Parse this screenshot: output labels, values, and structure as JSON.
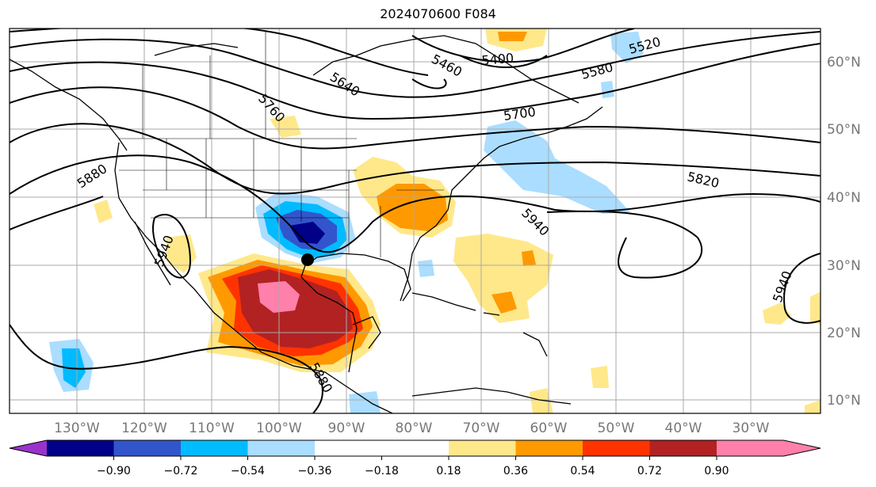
{
  "title": "2024070600 F084",
  "map": {
    "lon_labels": [
      "130°W",
      "120°W",
      "110°W",
      "100°W",
      "90°W",
      "80°W",
      "70°W",
      "60°W",
      "50°W",
      "40°W",
      "30°W"
    ],
    "lat_labels": [
      "60°N",
      "50°N",
      "40°N",
      "30°N",
      "20°N",
      "10°N"
    ],
    "contour_labels": [
      "5460",
      "5400",
      "5520",
      "5580",
      "5640",
      "5700",
      "5760",
      "5820",
      "5880",
      "5940",
      "5940",
      "5940",
      "5880"
    ]
  },
  "colorbar": {
    "ticks": [
      "−0.90",
      "−0.72",
      "−0.54",
      "−0.36",
      "−0.18",
      "0.18",
      "0.36",
      "0.54",
      "0.72",
      "0.90"
    ],
    "colors": [
      "#9933cc",
      "#000088",
      "#3355cc",
      "#00bbff",
      "#aaddff",
      "#ffffff",
      "#ffe88a",
      "#ff9900",
      "#ff3300",
      "#b22222",
      "#ff80aa"
    ]
  },
  "colors": {
    "neg_light": "#aaddff",
    "neg_mid": "#00bbff",
    "neg_deep": "#3355cc",
    "neg_darkest": "#000088",
    "pos_light": "#ffe88a",
    "pos_mid": "#ff9900",
    "pos_strong": "#ff3300",
    "pos_deep": "#b22222",
    "pos_peak": "#ff80aa"
  }
}
